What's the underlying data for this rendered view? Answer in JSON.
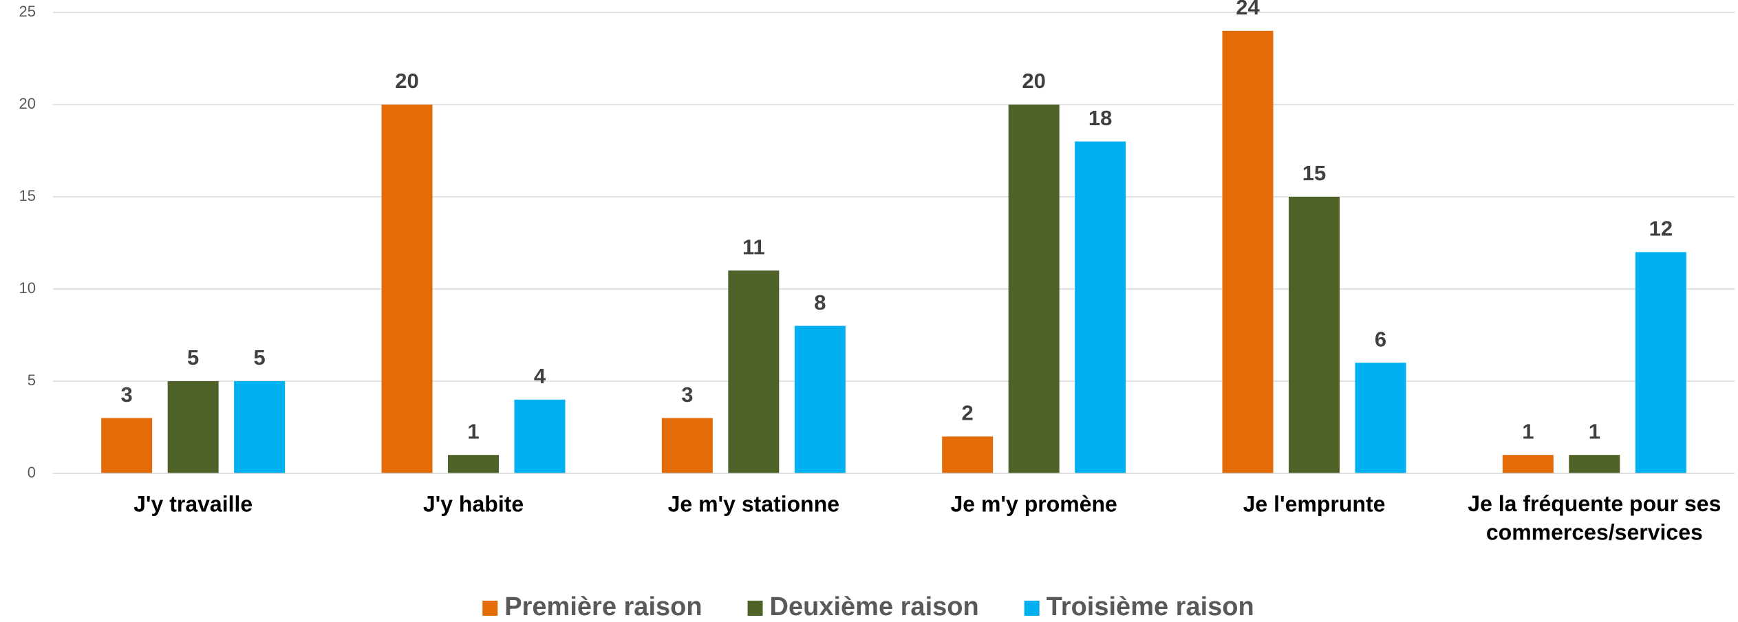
{
  "chart_data": {
    "type": "bar",
    "categories": [
      "J'y travaille",
      "J'y habite",
      "Je m'y stationne",
      "Je m'y promène",
      "Je l'emprunte",
      "Je la fréquente pour ses commerces/services"
    ],
    "series": [
      {
        "name": "Première raison",
        "color": "#E36C09",
        "values": [
          3,
          20,
          3,
          2,
          24,
          1
        ]
      },
      {
        "name": "Deuxième raison",
        "color": "#4F6228",
        "values": [
          5,
          1,
          11,
          20,
          15,
          1
        ]
      },
      {
        "name": "Troisième raison",
        "color": "#00B0F0",
        "values": [
          5,
          4,
          8,
          18,
          6,
          12
        ]
      }
    ],
    "ylim": [
      0,
      25
    ],
    "yticks": [
      0,
      5,
      10,
      15,
      20,
      25
    ],
    "grid": true,
    "legend": "bottom"
  }
}
